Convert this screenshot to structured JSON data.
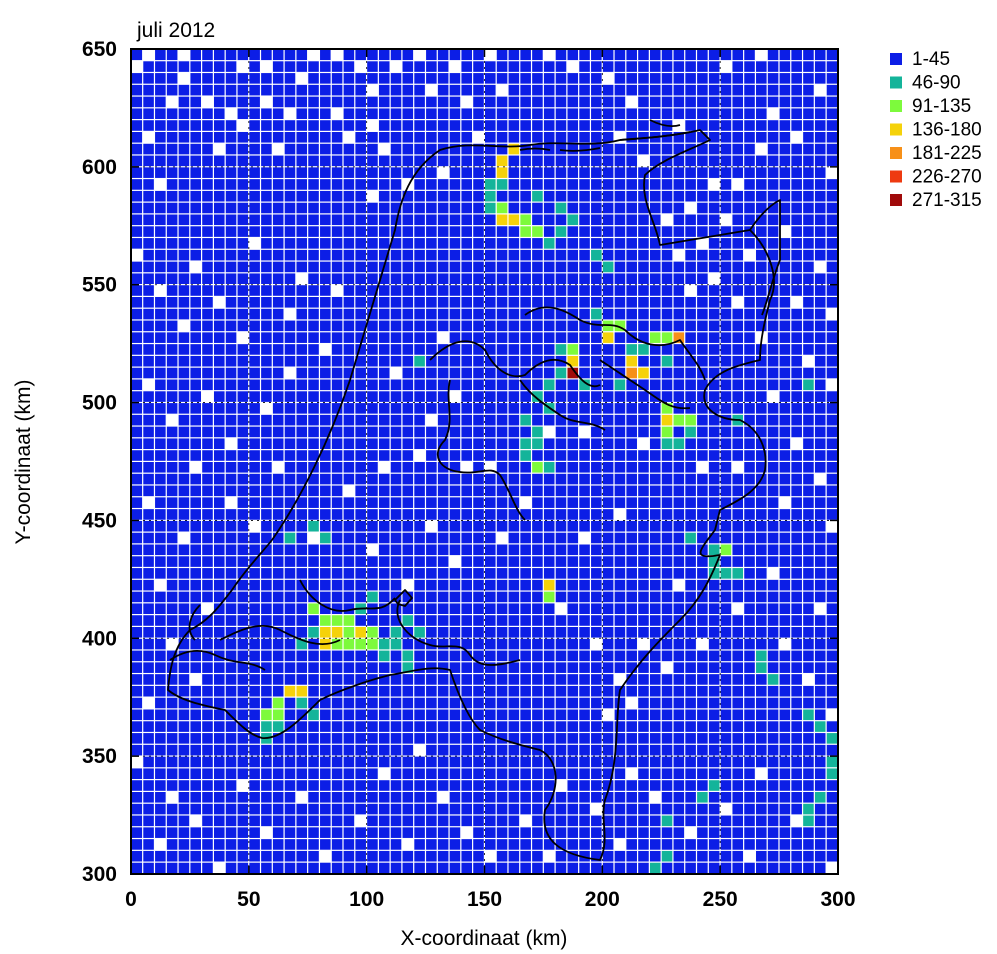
{
  "chart_data": {
    "type": "heatmap",
    "title": "juli 2012",
    "xlabel": "X-coordinaat (km)",
    "ylabel": "Y-coordinaat (km)",
    "xlim": [
      0,
      300
    ],
    "ylim": [
      300,
      650
    ],
    "xticks": [
      "0",
      "50",
      "100",
      "150",
      "200",
      "250",
      "300"
    ],
    "yticks": [
      "300",
      "350",
      "400",
      "450",
      "500",
      "550",
      "600",
      "650"
    ],
    "cell_size_km": 5,
    "grid": true,
    "legend_position": "top-right, outside plot",
    "legend": [
      {
        "label": "1-45",
        "color": "#0c1ee6"
      },
      {
        "label": "46-90",
        "color": "#14b49a"
      },
      {
        "label": "91-135",
        "color": "#7dfa3c"
      },
      {
        "label": "136-180",
        "color": "#f5d20a"
      },
      {
        "label": "181-225",
        "color": "#f79018"
      },
      {
        "label": "226-270",
        "color": "#ee3a10"
      },
      {
        "label": "271-315",
        "color": "#a00a0a"
      }
    ],
    "background_class": "1-45",
    "empty_cells": [
      [
        0,
        640
      ],
      [
        5,
        645
      ],
      [
        15,
        625
      ],
      [
        20,
        635
      ],
      [
        20,
        645
      ],
      [
        5,
        610
      ],
      [
        30,
        625
      ],
      [
        10,
        590
      ],
      [
        35,
        605
      ],
      [
        45,
        640
      ],
      [
        55,
        640
      ],
      [
        40,
        620
      ],
      [
        45,
        615
      ],
      [
        55,
        625
      ],
      [
        60,
        605
      ],
      [
        65,
        620
      ],
      [
        70,
        635
      ],
      [
        75,
        645
      ],
      [
        85,
        645
      ],
      [
        95,
        640
      ],
      [
        85,
        620
      ],
      [
        90,
        610
      ],
      [
        100,
        630
      ],
      [
        100,
        615
      ],
      [
        105,
        605
      ],
      [
        110,
        640
      ],
      [
        120,
        645
      ],
      [
        125,
        630
      ],
      [
        135,
        640
      ],
      [
        140,
        625
      ],
      [
        145,
        610
      ],
      [
        150,
        645
      ],
      [
        100,
        585
      ],
      [
        115,
        590
      ],
      [
        130,
        595
      ],
      [
        155,
        630
      ],
      [
        175,
        645
      ],
      [
        185,
        640
      ],
      [
        200,
        635
      ],
      [
        210,
        625
      ],
      [
        205,
        610
      ],
      [
        215,
        600
      ],
      [
        230,
        615
      ],
      [
        250,
        640
      ],
      [
        265,
        645
      ],
      [
        270,
        620
      ],
      [
        265,
        605
      ],
      [
        255,
        590
      ],
      [
        280,
        610
      ],
      [
        290,
        630
      ],
      [
        295,
        595
      ],
      [
        275,
        570
      ],
      [
        290,
        555
      ],
      [
        295,
        535
      ],
      [
        280,
        540
      ],
      [
        265,
        525
      ],
      [
        285,
        515
      ],
      [
        270,
        500
      ],
      [
        295,
        505
      ],
      [
        280,
        480
      ],
      [
        290,
        465
      ],
      [
        275,
        455
      ],
      [
        295,
        445
      ],
      [
        0,
        560
      ],
      [
        10,
        545
      ],
      [
        25,
        555
      ],
      [
        20,
        530
      ],
      [
        35,
        540
      ],
      [
        50,
        565
      ],
      [
        45,
        525
      ],
      [
        65,
        535
      ],
      [
        70,
        550
      ],
      [
        85,
        545
      ],
      [
        5,
        505
      ],
      [
        15,
        490
      ],
      [
        30,
        500
      ],
      [
        40,
        480
      ],
      [
        25,
        470
      ],
      [
        55,
        495
      ],
      [
        65,
        510
      ],
      [
        80,
        520
      ],
      [
        110,
        510
      ],
      [
        105,
        470
      ],
      [
        130,
        525
      ],
      [
        125,
        490
      ],
      [
        5,
        455
      ],
      [
        20,
        440
      ],
      [
        10,
        420
      ],
      [
        30,
        410
      ],
      [
        15,
        395
      ],
      [
        25,
        380
      ],
      [
        5,
        370
      ],
      [
        0,
        345
      ],
      [
        15,
        330
      ],
      [
        10,
        310
      ],
      [
        25,
        320
      ],
      [
        35,
        300
      ],
      [
        45,
        335
      ],
      [
        55,
        315
      ],
      [
        70,
        330
      ],
      [
        80,
        305
      ],
      [
        95,
        320
      ],
      [
        105,
        340
      ],
      [
        115,
        310
      ],
      [
        130,
        330
      ],
      [
        140,
        315
      ],
      [
        120,
        350
      ],
      [
        150,
        305
      ],
      [
        165,
        320
      ],
      [
        180,
        335
      ],
      [
        175,
        305
      ],
      [
        195,
        325
      ],
      [
        210,
        340
      ],
      [
        205,
        310
      ],
      [
        220,
        330
      ],
      [
        235,
        315
      ],
      [
        250,
        325
      ],
      [
        260,
        305
      ],
      [
        265,
        340
      ],
      [
        280,
        320
      ],
      [
        295,
        300
      ],
      [
        180,
        410
      ],
      [
        195,
        395
      ],
      [
        205,
        380
      ],
      [
        200,
        365
      ],
      [
        210,
        370
      ],
      [
        215,
        395
      ],
      [
        230,
        420
      ],
      [
        225,
        385
      ],
      [
        240,
        395
      ],
      [
        255,
        410
      ],
      [
        270,
        425
      ],
      [
        275,
        395
      ],
      [
        290,
        410
      ],
      [
        285,
        380
      ],
      [
        295,
        365
      ],
      [
        115,
        420
      ],
      [
        125,
        445
      ],
      [
        135,
        430
      ],
      [
        100,
        435
      ],
      [
        90,
        460
      ],
      [
        75,
        440
      ],
      [
        60,
        470
      ],
      [
        50,
        445
      ],
      [
        40,
        455
      ],
      [
        225,
        575
      ],
      [
        230,
        560
      ],
      [
        235,
        580
      ],
      [
        240,
        565
      ],
      [
        245,
        550
      ],
      [
        235,
        545
      ],
      [
        250,
        575
      ],
      [
        245,
        590
      ],
      [
        260,
        560
      ],
      [
        255,
        540
      ],
      [
        215,
        480
      ],
      [
        240,
        470
      ],
      [
        255,
        470
      ],
      [
        205,
        450
      ],
      [
        190,
        440
      ],
      [
        165,
        455
      ],
      [
        155,
        440
      ],
      [
        150,
        470
      ],
      [
        175,
        485
      ],
      [
        140,
        470
      ],
      [
        135,
        500
      ],
      [
        120,
        475
      ],
      [
        190,
        485
      ]
    ],
    "cells": [
      {
        "x": 155,
        "y": 600,
        "class": "136-180"
      },
      {
        "x": 160,
        "y": 605,
        "class": "136-180"
      },
      {
        "x": 155,
        "y": 595,
        "class": "136-180"
      },
      {
        "x": 150,
        "y": 590,
        "class": "46-90"
      },
      {
        "x": 155,
        "y": 590,
        "class": "46-90"
      },
      {
        "x": 150,
        "y": 585,
        "class": "46-90"
      },
      {
        "x": 150,
        "y": 580,
        "class": "46-90"
      },
      {
        "x": 155,
        "y": 580,
        "class": "91-135"
      },
      {
        "x": 160,
        "y": 575,
        "class": "136-180"
      },
      {
        "x": 155,
        "y": 575,
        "class": "136-180"
      },
      {
        "x": 165,
        "y": 575,
        "class": "91-135"
      },
      {
        "x": 165,
        "y": 570,
        "class": "91-135"
      },
      {
        "x": 170,
        "y": 570,
        "class": "91-135"
      },
      {
        "x": 175,
        "y": 565,
        "class": "46-90"
      },
      {
        "x": 170,
        "y": 585,
        "class": "46-90"
      },
      {
        "x": 180,
        "y": 580,
        "class": "46-90"
      },
      {
        "x": 185,
        "y": 575,
        "class": "46-90"
      },
      {
        "x": 180,
        "y": 570,
        "class": "46-90"
      },
      {
        "x": 195,
        "y": 560,
        "class": "46-90"
      },
      {
        "x": 200,
        "y": 555,
        "class": "46-90"
      },
      {
        "x": 200,
        "y": 530,
        "class": "91-135"
      },
      {
        "x": 200,
        "y": 525,
        "class": "136-180"
      },
      {
        "x": 195,
        "y": 535,
        "class": "46-90"
      },
      {
        "x": 205,
        "y": 530,
        "class": "91-135"
      },
      {
        "x": 210,
        "y": 520,
        "class": "46-90"
      },
      {
        "x": 215,
        "y": 520,
        "class": "46-90"
      },
      {
        "x": 220,
        "y": 525,
        "class": "91-135"
      },
      {
        "x": 225,
        "y": 525,
        "class": "91-135"
      },
      {
        "x": 230,
        "y": 525,
        "class": "181-225"
      },
      {
        "x": 225,
        "y": 515,
        "class": "46-90"
      },
      {
        "x": 210,
        "y": 515,
        "class": "136-180"
      },
      {
        "x": 210,
        "y": 510,
        "class": "181-225"
      },
      {
        "x": 215,
        "y": 510,
        "class": "136-180"
      },
      {
        "x": 205,
        "y": 505,
        "class": "46-90"
      },
      {
        "x": 180,
        "y": 520,
        "class": "46-90"
      },
      {
        "x": 185,
        "y": 520,
        "class": "91-135"
      },
      {
        "x": 185,
        "y": 515,
        "class": "136-180"
      },
      {
        "x": 185,
        "y": 510,
        "class": "271-315"
      },
      {
        "x": 180,
        "y": 510,
        "class": "46-90"
      },
      {
        "x": 190,
        "y": 505,
        "class": "46-90"
      },
      {
        "x": 175,
        "y": 505,
        "class": "46-90"
      },
      {
        "x": 170,
        "y": 500,
        "class": "46-90"
      },
      {
        "x": 175,
        "y": 495,
        "class": "46-90"
      },
      {
        "x": 165,
        "y": 490,
        "class": "46-90"
      },
      {
        "x": 170,
        "y": 485,
        "class": "46-90"
      },
      {
        "x": 175,
        "y": 485,
        "class": "46-90"
      },
      {
        "x": 165,
        "y": 480,
        "class": "46-90"
      },
      {
        "x": 170,
        "y": 480,
        "class": "46-90"
      },
      {
        "x": 175,
        "y": 470,
        "class": "46-90"
      },
      {
        "x": 165,
        "y": 475,
        "class": "46-90"
      },
      {
        "x": 170,
        "y": 470,
        "class": "91-135"
      },
      {
        "x": 225,
        "y": 495,
        "class": "91-135"
      },
      {
        "x": 225,
        "y": 490,
        "class": "136-180"
      },
      {
        "x": 230,
        "y": 490,
        "class": "91-135"
      },
      {
        "x": 235,
        "y": 490,
        "class": "91-135"
      },
      {
        "x": 225,
        "y": 485,
        "class": "91-135"
      },
      {
        "x": 225,
        "y": 480,
        "class": "46-90"
      },
      {
        "x": 230,
        "y": 480,
        "class": "46-90"
      },
      {
        "x": 235,
        "y": 485,
        "class": "46-90"
      },
      {
        "x": 245,
        "y": 435,
        "class": "46-90"
      },
      {
        "x": 250,
        "y": 435,
        "class": "91-135"
      },
      {
        "x": 245,
        "y": 430,
        "class": "46-90"
      },
      {
        "x": 250,
        "y": 425,
        "class": "46-90"
      },
      {
        "x": 245,
        "y": 425,
        "class": "46-90"
      },
      {
        "x": 255,
        "y": 425,
        "class": "46-90"
      },
      {
        "x": 175,
        "y": 420,
        "class": "136-180"
      },
      {
        "x": 175,
        "y": 415,
        "class": "91-135"
      },
      {
        "x": 75,
        "y": 410,
        "class": "91-135"
      },
      {
        "x": 80,
        "y": 405,
        "class": "91-135"
      },
      {
        "x": 85,
        "y": 405,
        "class": "91-135"
      },
      {
        "x": 90,
        "y": 405,
        "class": "91-135"
      },
      {
        "x": 80,
        "y": 400,
        "class": "136-180"
      },
      {
        "x": 85,
        "y": 400,
        "class": "136-180"
      },
      {
        "x": 90,
        "y": 400,
        "class": "91-135"
      },
      {
        "x": 95,
        "y": 400,
        "class": "136-180"
      },
      {
        "x": 100,
        "y": 400,
        "class": "91-135"
      },
      {
        "x": 80,
        "y": 395,
        "class": "136-180"
      },
      {
        "x": 85,
        "y": 395,
        "class": "91-135"
      },
      {
        "x": 90,
        "y": 395,
        "class": "91-135"
      },
      {
        "x": 95,
        "y": 395,
        "class": "91-135"
      },
      {
        "x": 100,
        "y": 395,
        "class": "91-135"
      },
      {
        "x": 105,
        "y": 395,
        "class": "46-90"
      },
      {
        "x": 70,
        "y": 395,
        "class": "46-90"
      },
      {
        "x": 75,
        "y": 400,
        "class": "46-90"
      },
      {
        "x": 110,
        "y": 395,
        "class": "46-90"
      },
      {
        "x": 105,
        "y": 390,
        "class": "46-90"
      },
      {
        "x": 115,
        "y": 390,
        "class": "46-90"
      },
      {
        "x": 115,
        "y": 385,
        "class": "46-90"
      },
      {
        "x": 110,
        "y": 400,
        "class": "46-90"
      },
      {
        "x": 115,
        "y": 405,
        "class": "46-90"
      },
      {
        "x": 120,
        "y": 400,
        "class": "46-90"
      },
      {
        "x": 95,
        "y": 410,
        "class": "46-90"
      },
      {
        "x": 100,
        "y": 415,
        "class": "46-90"
      },
      {
        "x": 65,
        "y": 375,
        "class": "136-180"
      },
      {
        "x": 70,
        "y": 375,
        "class": "136-180"
      },
      {
        "x": 60,
        "y": 370,
        "class": "91-135"
      },
      {
        "x": 55,
        "y": 365,
        "class": "91-135"
      },
      {
        "x": 60,
        "y": 365,
        "class": "91-135"
      },
      {
        "x": 55,
        "y": 360,
        "class": "46-90"
      },
      {
        "x": 60,
        "y": 360,
        "class": "46-90"
      },
      {
        "x": 55,
        "y": 355,
        "class": "46-90"
      },
      {
        "x": 75,
        "y": 365,
        "class": "46-90"
      },
      {
        "x": 70,
        "y": 370,
        "class": "46-90"
      },
      {
        "x": 285,
        "y": 365,
        "class": "46-90"
      },
      {
        "x": 290,
        "y": 360,
        "class": "46-90"
      },
      {
        "x": 295,
        "y": 355,
        "class": "46-90"
      },
      {
        "x": 295,
        "y": 345,
        "class": "46-90"
      },
      {
        "x": 295,
        "y": 340,
        "class": "46-90"
      },
      {
        "x": 290,
        "y": 330,
        "class": "46-90"
      },
      {
        "x": 285,
        "y": 325,
        "class": "46-90"
      },
      {
        "x": 280,
        "y": 320,
        "class": "46-90"
      },
      {
        "x": 285,
        "y": 320,
        "class": "46-90"
      },
      {
        "x": 245,
        "y": 335,
        "class": "46-90"
      },
      {
        "x": 240,
        "y": 330,
        "class": "46-90"
      },
      {
        "x": 225,
        "y": 320,
        "class": "46-90"
      },
      {
        "x": 220,
        "y": 300,
        "class": "46-90"
      },
      {
        "x": 225,
        "y": 305,
        "class": "46-90"
      },
      {
        "x": 265,
        "y": 390,
        "class": "46-90"
      },
      {
        "x": 265,
        "y": 385,
        "class": "46-90"
      },
      {
        "x": 270,
        "y": 380,
        "class": "46-90"
      },
      {
        "x": 65,
        "y": 440,
        "class": "46-90"
      },
      {
        "x": 75,
        "y": 445,
        "class": "46-90"
      },
      {
        "x": 80,
        "y": 440,
        "class": "46-90"
      },
      {
        "x": 120,
        "y": 515,
        "class": "46-90"
      },
      {
        "x": 255,
        "y": 490,
        "class": "46-90"
      },
      {
        "x": 285,
        "y": 505,
        "class": "46-90"
      },
      {
        "x": 235,
        "y": 440,
        "class": "46-90"
      }
    ]
  }
}
